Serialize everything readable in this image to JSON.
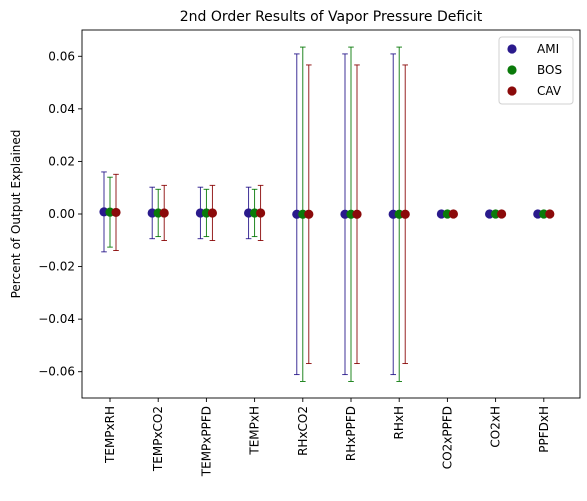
{
  "chart_data": {
    "type": "scatter",
    "title": "2nd Order Results of Vapor Pressure Deficit",
    "xlabel": "",
    "ylabel": "Percent of Output Explained",
    "categories": [
      "TEMPxRH",
      "TEMPxCO2",
      "TEMPxPPFD",
      "TEMPxH",
      "RHxCO2",
      "RHxPPFD",
      "RHxH",
      "CO2xPPFD",
      "CO2xH",
      "PPFDxH"
    ],
    "ylim": [
      -0.07,
      0.07
    ],
    "yticks": [
      -0.06,
      -0.04,
      -0.02,
      0.0,
      0.02,
      0.04,
      0.06
    ],
    "ytick_labels": [
      "−0.06",
      "−0.04",
      "−0.02",
      "0.00",
      "0.02",
      "0.04",
      "0.06"
    ],
    "grid": false,
    "legend_position": "top-right",
    "series": [
      {
        "name": "AMI",
        "color": "#2a1a8c",
        "values": [
          0.0008,
          0.0004,
          0.0004,
          0.0004,
          -0.0001,
          -0.0001,
          -0.0001,
          0.0,
          0.0,
          0.0
        ],
        "errors": [
          0.0152,
          0.0098,
          0.0098,
          0.0098,
          0.061,
          0.061,
          0.061,
          0.0,
          0.0,
          0.0
        ]
      },
      {
        "name": "BOS",
        "color": "#0a7a0a",
        "values": [
          0.0007,
          0.0004,
          0.0004,
          0.0004,
          -0.0001,
          -0.0001,
          -0.0001,
          0.0,
          0.0,
          0.0
        ],
        "errors": [
          0.0133,
          0.009,
          0.009,
          0.009,
          0.0636,
          0.0636,
          0.0636,
          0.0,
          0.0,
          0.0
        ]
      },
      {
        "name": "CAV",
        "color": "#8b0a0a",
        "values": [
          0.0006,
          0.0004,
          0.0004,
          0.0004,
          -0.0001,
          -0.0001,
          -0.0001,
          0.0,
          0.0,
          0.0
        ],
        "errors": [
          0.0145,
          0.0105,
          0.0105,
          0.0105,
          0.0568,
          0.0568,
          0.0568,
          0.0,
          0.0,
          0.0
        ]
      }
    ]
  }
}
